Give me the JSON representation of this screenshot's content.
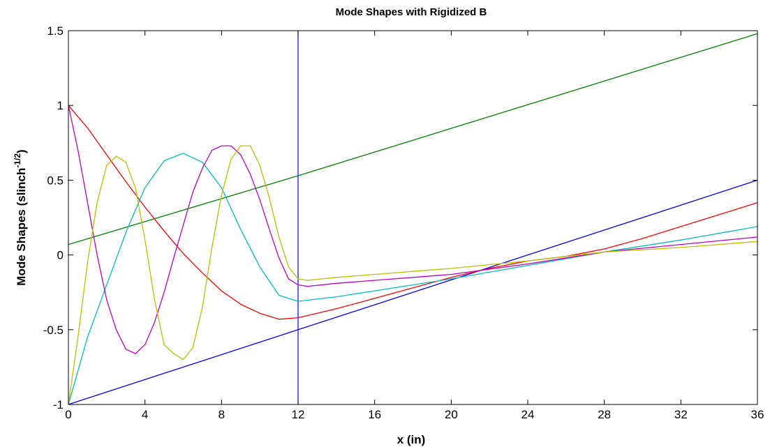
{
  "chart_data": {
    "type": "line",
    "title": "Mode Shapes with Rigidized B",
    "xlabel": "x (in)",
    "ylabel_main": "Mode Shapes (slinch",
    "ylabel_sup": "-1/2",
    "ylabel_end": ")",
    "xlim": [
      0,
      36
    ],
    "ylim": [
      -1,
      1.5
    ],
    "xticks": [
      0,
      4,
      8,
      12,
      16,
      20,
      24,
      28,
      32,
      36
    ],
    "xtick_labels": [
      "0",
      "4",
      "8",
      "12",
      "16",
      "20",
      "24",
      "28",
      "32",
      "36"
    ],
    "yticks": [
      -1,
      -0.5,
      0,
      0.5,
      1,
      1.5
    ],
    "ytick_labels": [
      "-1",
      "-0.5",
      "0",
      "0.5",
      "1",
      "1.5"
    ],
    "grid": false,
    "annotations": [
      {
        "type": "vline",
        "x": 12,
        "color": "#0000ff"
      }
    ],
    "series": [
      {
        "color": "#008000",
        "x": [
          0,
          12,
          36
        ],
        "y": [
          0.07,
          0.53,
          1.48
        ]
      },
      {
        "color": "#0000ff",
        "x": [
          0,
          12,
          36
        ],
        "y": [
          -1.0,
          -0.5,
          0.5
        ]
      },
      {
        "color": "#ff0000",
        "x": [
          0,
          1,
          2,
          3,
          4,
          5,
          6,
          7,
          8,
          9,
          10,
          11,
          12,
          14,
          16,
          18,
          20,
          22,
          24,
          26,
          28,
          30,
          32,
          34,
          36
        ],
        "y": [
          1.0,
          0.85,
          0.67,
          0.49,
          0.32,
          0.16,
          0.01,
          -0.12,
          -0.24,
          -0.33,
          -0.39,
          -0.43,
          -0.42,
          -0.36,
          -0.29,
          -0.22,
          -0.15,
          -0.09,
          -0.04,
          -0.01,
          0.04,
          0.11,
          0.19,
          0.27,
          0.35
        ]
      },
      {
        "color": "#00bfbf",
        "x": [
          0,
          1,
          2,
          3,
          4,
          5,
          6,
          7,
          8,
          9,
          10,
          11,
          12,
          14,
          16,
          18,
          20,
          24,
          28,
          32,
          36
        ],
        "y": [
          -1.0,
          -0.55,
          -0.2,
          0.15,
          0.45,
          0.63,
          0.68,
          0.62,
          0.45,
          0.17,
          -0.08,
          -0.27,
          -0.31,
          -0.28,
          -0.24,
          -0.2,
          -0.16,
          -0.07,
          0.02,
          0.1,
          0.19
        ]
      },
      {
        "color": "#bf00bf",
        "x": [
          0,
          0.5,
          1,
          1.5,
          2,
          2.5,
          3,
          3.5,
          4,
          4.5,
          5,
          5.5,
          6,
          6.5,
          7,
          7.5,
          8,
          8.5,
          9,
          9.5,
          10,
          10.5,
          11,
          11.5,
          12,
          12.5,
          14,
          16,
          18,
          20,
          24,
          28,
          32,
          36
        ],
        "y": [
          1.0,
          0.7,
          0.35,
          0.0,
          -0.3,
          -0.5,
          -0.63,
          -0.66,
          -0.6,
          -0.45,
          -0.25,
          -0.02,
          0.2,
          0.42,
          0.58,
          0.7,
          0.73,
          0.73,
          0.67,
          0.54,
          0.37,
          0.17,
          -0.02,
          -0.16,
          -0.2,
          -0.21,
          -0.19,
          -0.17,
          -0.15,
          -0.13,
          -0.06,
          0.02,
          0.07,
          0.12
        ]
      },
      {
        "color": "#bfbf00",
        "x": [
          0,
          0.5,
          1,
          1.5,
          2,
          2.5,
          3,
          3.5,
          4,
          4.5,
          5,
          5.5,
          6,
          6.5,
          7,
          7.5,
          8,
          8.5,
          9,
          9.5,
          10,
          10.5,
          11,
          11.5,
          12,
          12.5,
          14,
          16,
          18,
          20,
          24,
          28,
          32,
          36
        ],
        "y": [
          -1.0,
          -0.55,
          -0.05,
          0.35,
          0.6,
          0.66,
          0.62,
          0.45,
          0.1,
          -0.3,
          -0.6,
          -0.66,
          -0.7,
          -0.62,
          -0.35,
          0.05,
          0.4,
          0.64,
          0.73,
          0.73,
          0.6,
          0.38,
          0.12,
          -0.08,
          -0.16,
          -0.17,
          -0.15,
          -0.13,
          -0.11,
          -0.09,
          -0.04,
          0.02,
          0.05,
          0.09
        ]
      }
    ]
  }
}
